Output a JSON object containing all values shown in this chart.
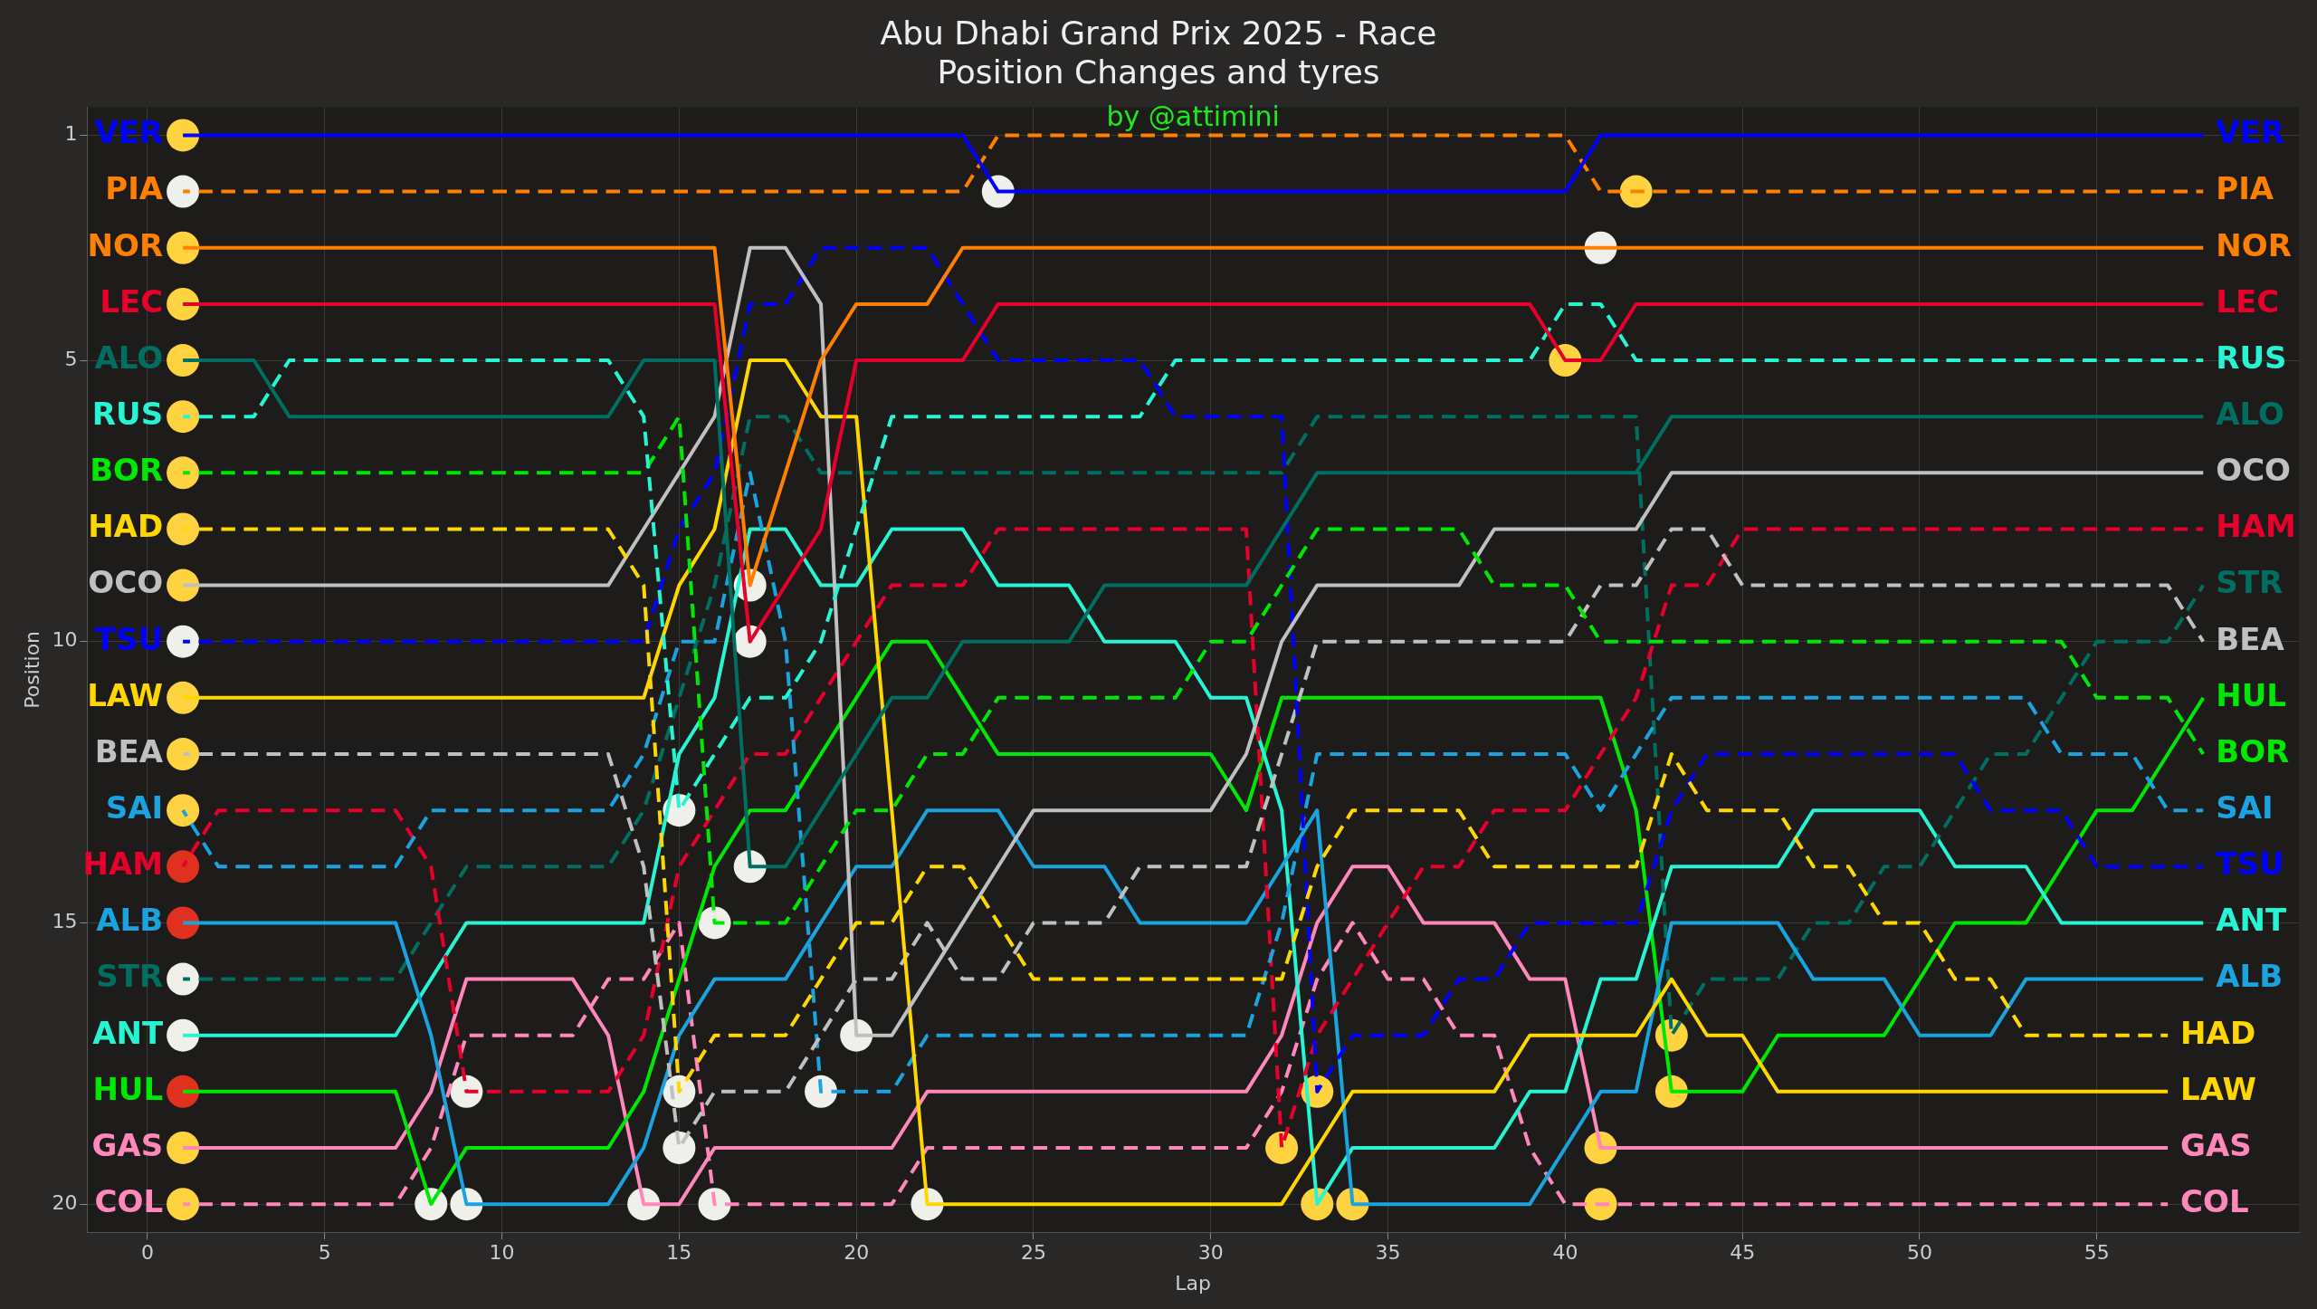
{
  "chart_data": {
    "type": "line",
    "title": "Abu Dhabi Grand Prix 2025 - Race",
    "subtitle": "Position Changes and tyres",
    "xlabel": "Lap",
    "ylabel": "Position",
    "annotations": [
      "by @attimini"
    ],
    "x": [
      1,
      2,
      3,
      4,
      5,
      6,
      7,
      8,
      9,
      10,
      11,
      12,
      13,
      14,
      15,
      16,
      17,
      18,
      19,
      20,
      21,
      22,
      23,
      24,
      25,
      26,
      27,
      28,
      29,
      30,
      31,
      32,
      33,
      34,
      35,
      36,
      37,
      38,
      39,
      40,
      41,
      42,
      43,
      44,
      45,
      46,
      47,
      48,
      49,
      50,
      51,
      52,
      53,
      54,
      55,
      56,
      57,
      58
    ],
    "xlim": [
      -1.7,
      60.7
    ],
    "xticks": [
      0,
      5,
      10,
      15,
      20,
      25,
      30,
      35,
      40,
      45,
      50,
      55
    ],
    "ylim": [
      20.5,
      0.5
    ],
    "yticks": [
      1,
      5,
      10,
      15,
      20
    ],
    "grid": true,
    "legend": "right",
    "marker": "none",
    "series": [
      {
        "name": "VER",
        "color": "#0000ff",
        "line_style": "solid",
        "values": [
          1,
          1,
          1,
          1,
          1,
          1,
          1,
          1,
          1,
          1,
          1,
          1,
          1,
          1,
          1,
          1,
          1,
          1,
          1,
          1,
          1,
          1,
          1,
          2,
          2,
          2,
          2,
          2,
          2,
          2,
          2,
          2,
          2,
          2,
          2,
          2,
          2,
          2,
          2,
          2,
          1,
          1,
          1,
          1,
          1,
          1,
          1,
          1,
          1,
          1,
          1,
          1,
          1,
          1,
          1,
          1,
          1,
          1
        ]
      },
      {
        "name": "PIA",
        "color": "#ff8000",
        "line_style": "dashed",
        "values": [
          2,
          2,
          2,
          2,
          2,
          2,
          2,
          2,
          2,
          2,
          2,
          2,
          2,
          2,
          2,
          2,
          2,
          2,
          2,
          2,
          2,
          2,
          2,
          1,
          1,
          1,
          1,
          1,
          1,
          1,
          1,
          1,
          1,
          1,
          1,
          1,
          1,
          1,
          1,
          1,
          2,
          2,
          2,
          2,
          2,
          2,
          2,
          2,
          2,
          2,
          2,
          2,
          2,
          2,
          2,
          2,
          2,
          2
        ]
      },
      {
        "name": "NOR",
        "color": "#ff8000",
        "line_style": "solid",
        "values": [
          3,
          3,
          3,
          3,
          3,
          3,
          3,
          3,
          3,
          3,
          3,
          3,
          3,
          3,
          3,
          3,
          9,
          7,
          5,
          4,
          4,
          4,
          3,
          3,
          3,
          3,
          3,
          3,
          3,
          3,
          3,
          3,
          3,
          3,
          3,
          3,
          3,
          3,
          3,
          3,
          3,
          3,
          3,
          3,
          3,
          3,
          3,
          3,
          3,
          3,
          3,
          3,
          3,
          3,
          3,
          3,
          3,
          3
        ]
      },
      {
        "name": "LEC",
        "color": "#e8002d",
        "line_style": "solid",
        "values": [
          4,
          4,
          4,
          4,
          4,
          4,
          4,
          4,
          4,
          4,
          4,
          4,
          4,
          4,
          4,
          4,
          10,
          9,
          8,
          5,
          5,
          5,
          5,
          4,
          4,
          4,
          4,
          4,
          4,
          4,
          4,
          4,
          4,
          4,
          4,
          4,
          4,
          4,
          4,
          5,
          5,
          4,
          4,
          4,
          4,
          4,
          4,
          4,
          4,
          4,
          4,
          4,
          4,
          4,
          4,
          4,
          4,
          4
        ]
      },
      {
        "name": "ALO",
        "color": "#006f62",
        "line_style": "solid",
        "values": [
          5,
          5,
          5,
          6,
          6,
          6,
          6,
          6,
          6,
          6,
          6,
          6,
          6,
          5,
          5,
          5,
          14,
          14,
          13,
          12,
          11,
          11,
          10,
          10,
          10,
          10,
          9,
          9,
          9,
          9,
          9,
          8,
          7,
          7,
          7,
          7,
          7,
          7,
          7,
          7,
          7,
          7,
          6,
          6,
          6,
          6,
          6,
          6,
          6,
          6,
          6,
          6,
          6,
          6,
          6,
          6,
          6,
          6
        ]
      },
      {
        "name": "RUS",
        "color": "#27f4d2",
        "line_style": "dashed",
        "values": [
          6,
          6,
          6,
          5,
          5,
          5,
          5,
          5,
          5,
          5,
          5,
          5,
          5,
          6,
          13,
          12,
          11,
          11,
          10,
          8,
          6,
          6,
          6,
          6,
          6,
          6,
          6,
          6,
          5,
          5,
          5,
          5,
          5,
          5,
          5,
          5,
          5,
          5,
          5,
          4,
          4,
          5,
          5,
          5,
          5,
          5,
          5,
          5,
          5,
          5,
          5,
          5,
          5,
          5,
          5,
          5,
          5,
          5
        ]
      },
      {
        "name": "BOR",
        "color": "#00e701",
        "line_style": "dashed",
        "values": [
          7,
          7,
          7,
          7,
          7,
          7,
          7,
          7,
          7,
          7,
          7,
          7,
          7,
          7,
          6,
          15,
          15,
          15,
          14,
          13,
          13,
          12,
          12,
          11,
          11,
          11,
          11,
          11,
          11,
          10,
          10,
          9,
          8,
          8,
          8,
          8,
          8,
          9,
          9,
          9,
          10,
          10,
          10,
          10,
          10,
          10,
          10,
          10,
          10,
          10,
          10,
          10,
          10,
          10,
          11,
          11,
          11,
          12
        ]
      },
      {
        "name": "HAD",
        "color": "#ffd700",
        "line_style": "dashed",
        "values": [
          8,
          8,
          8,
          8,
          8,
          8,
          8,
          8,
          8,
          8,
          8,
          8,
          8,
          9,
          18,
          17,
          17,
          17,
          16,
          15,
          15,
          14,
          14,
          15,
          16,
          16,
          16,
          16,
          16,
          16,
          16,
          16,
          14,
          13,
          13,
          13,
          13,
          14,
          14,
          14,
          14,
          14,
          12,
          13,
          13,
          13,
          14,
          14,
          15,
          15,
          16,
          16,
          17,
          17,
          17,
          17,
          17,
          null
        ]
      },
      {
        "name": "OCO",
        "color": "#c0c0c0",
        "line_style": "solid",
        "values": [
          9,
          9,
          9,
          9,
          9,
          9,
          9,
          9,
          9,
          9,
          9,
          9,
          9,
          8,
          7,
          6,
          3,
          3,
          4,
          17,
          17,
          16,
          15,
          14,
          13,
          13,
          13,
          13,
          13,
          13,
          12,
          10,
          9,
          9,
          9,
          9,
          9,
          8,
          8,
          8,
          8,
          8,
          7,
          7,
          7,
          7,
          7,
          7,
          7,
          7,
          7,
          7,
          7,
          7,
          7,
          7,
          7,
          7
        ]
      },
      {
        "name": "TSU",
        "color": "#0000ff",
        "line_style": "dashed",
        "values": [
          10,
          10,
          10,
          10,
          10,
          10,
          10,
          10,
          10,
          10,
          10,
          10,
          10,
          10,
          8,
          7,
          4,
          4,
          3,
          3,
          3,
          3,
          4,
          5,
          5,
          5,
          5,
          5,
          6,
          6,
          6,
          6,
          18,
          17,
          17,
          17,
          16,
          16,
          15,
          15,
          15,
          15,
          13,
          12,
          12,
          12,
          12,
          12,
          12,
          12,
          12,
          13,
          13,
          13,
          14,
          14,
          14,
          14
        ]
      },
      {
        "name": "LAW",
        "color": "#ffd700",
        "line_style": "solid",
        "values": [
          11,
          11,
          11,
          11,
          11,
          11,
          11,
          11,
          11,
          11,
          11,
          11,
          11,
          11,
          9,
          8,
          5,
          5,
          6,
          6,
          13,
          20,
          20,
          20,
          20,
          20,
          20,
          20,
          20,
          20,
          20,
          20,
          19,
          18,
          18,
          18,
          18,
          18,
          17,
          17,
          17,
          17,
          16,
          17,
          17,
          18,
          18,
          18,
          18,
          18,
          18,
          18,
          18,
          18,
          18,
          18,
          18,
          null
        ]
      },
      {
        "name": "BEA",
        "color": "#c0c0c0",
        "line_style": "dashed",
        "values": [
          12,
          12,
          12,
          12,
          12,
          12,
          12,
          12,
          12,
          12,
          12,
          12,
          12,
          14,
          19,
          18,
          18,
          18,
          17,
          16,
          16,
          15,
          16,
          16,
          15,
          15,
          15,
          14,
          14,
          14,
          14,
          12,
          10,
          10,
          10,
          10,
          10,
          10,
          10,
          10,
          9,
          9,
          8,
          8,
          9,
          9,
          9,
          9,
          9,
          9,
          9,
          9,
          9,
          9,
          9,
          9,
          9,
          10
        ]
      },
      {
        "name": "SAI",
        "color": "#1ba3e0",
        "line_style": "dashed",
        "values": [
          13,
          14,
          14,
          14,
          14,
          14,
          14,
          13,
          13,
          13,
          13,
          13,
          13,
          12,
          10,
          10,
          7,
          10,
          18,
          18,
          18,
          17,
          17,
          17,
          17,
          17,
          17,
          17,
          17,
          17,
          17,
          15,
          12,
          12,
          12,
          12,
          12,
          12,
          12,
          12,
          13,
          12,
          11,
          11,
          11,
          11,
          11,
          11,
          11,
          11,
          11,
          11,
          11,
          12,
          12,
          12,
          13,
          13
        ]
      },
      {
        "name": "HAM",
        "color": "#e8002d",
        "line_style": "dashed",
        "values": [
          14,
          13,
          13,
          13,
          13,
          13,
          13,
          14,
          18,
          18,
          18,
          18,
          18,
          17,
          14,
          13,
          12,
          12,
          11,
          10,
          9,
          9,
          9,
          8,
          8,
          8,
          8,
          8,
          8,
          8,
          8,
          19,
          17,
          16,
          15,
          14,
          14,
          13,
          13,
          13,
          12,
          11,
          9,
          9,
          8,
          8,
          8,
          8,
          8,
          8,
          8,
          8,
          8,
          8,
          8,
          8,
          8,
          8
        ]
      },
      {
        "name": "ALB",
        "color": "#1ba3e0",
        "line_style": "solid",
        "values": [
          15,
          15,
          15,
          15,
          15,
          15,
          15,
          17,
          20,
          20,
          20,
          20,
          20,
          19,
          17,
          16,
          16,
          16,
          15,
          14,
          14,
          13,
          13,
          13,
          14,
          14,
          14,
          15,
          15,
          15,
          15,
          14,
          13,
          20,
          20,
          20,
          20,
          20,
          20,
          19,
          18,
          18,
          15,
          15,
          15,
          15,
          16,
          16,
          16,
          17,
          17,
          17,
          16,
          16,
          16,
          16,
          16,
          16
        ]
      },
      {
        "name": "STR",
        "color": "#006f62",
        "line_style": "dashed",
        "values": [
          16,
          16,
          16,
          16,
          16,
          16,
          16,
          15,
          14,
          14,
          14,
          14,
          14,
          13,
          11,
          9,
          6,
          6,
          7,
          7,
          7,
          7,
          7,
          7,
          7,
          7,
          7,
          7,
          7,
          7,
          7,
          7,
          6,
          6,
          6,
          6,
          6,
          6,
          6,
          6,
          6,
          6,
          17,
          16,
          16,
          16,
          15,
          15,
          14,
          14,
          13,
          12,
          12,
          11,
          10,
          10,
          10,
          9
        ]
      },
      {
        "name": "ANT",
        "color": "#27f4d2",
        "line_style": "solid",
        "values": [
          17,
          17,
          17,
          17,
          17,
          17,
          17,
          16,
          15,
          15,
          15,
          15,
          15,
          15,
          12,
          11,
          8,
          8,
          9,
          9,
          8,
          8,
          8,
          9,
          9,
          9,
          10,
          10,
          10,
          11,
          11,
          13,
          20,
          19,
          19,
          19,
          19,
          19,
          18,
          18,
          16,
          16,
          14,
          14,
          14,
          14,
          13,
          13,
          13,
          13,
          14,
          14,
          14,
          15,
          15,
          15,
          15,
          15
        ]
      },
      {
        "name": "HUL",
        "color": "#00e701",
        "line_style": "solid",
        "values": [
          18,
          18,
          18,
          18,
          18,
          18,
          18,
          20,
          19,
          19,
          19,
          19,
          19,
          18,
          16,
          14,
          13,
          13,
          12,
          11,
          10,
          10,
          11,
          12,
          12,
          12,
          12,
          12,
          12,
          12,
          13,
          11,
          11,
          11,
          11,
          11,
          11,
          11,
          11,
          11,
          11,
          13,
          18,
          18,
          18,
          17,
          17,
          17,
          17,
          16,
          15,
          15,
          15,
          14,
          13,
          13,
          12,
          11
        ]
      },
      {
        "name": "GAS",
        "color": "#ff87bc",
        "line_style": "solid",
        "values": [
          19,
          19,
          19,
          19,
          19,
          19,
          19,
          18,
          16,
          16,
          16,
          16,
          17,
          20,
          20,
          19,
          19,
          19,
          19,
          19,
          19,
          18,
          18,
          18,
          18,
          18,
          18,
          18,
          18,
          18,
          18,
          17,
          15,
          14,
          14,
          15,
          15,
          15,
          16,
          16,
          19,
          19,
          19,
          19,
          19,
          19,
          19,
          19,
          19,
          19,
          19,
          19,
          19,
          19,
          19,
          19,
          19,
          null
        ]
      },
      {
        "name": "COL",
        "color": "#ff87bc",
        "line_style": "dashed",
        "values": [
          20,
          20,
          20,
          20,
          20,
          20,
          20,
          19,
          17,
          17,
          17,
          17,
          16,
          16,
          15,
          20,
          20,
          20,
          20,
          20,
          20,
          19,
          19,
          19,
          19,
          19,
          19,
          19,
          19,
          19,
          19,
          18,
          16,
          15,
          16,
          16,
          17,
          17,
          19,
          20,
          20,
          20,
          20,
          20,
          20,
          20,
          20,
          20,
          20,
          20,
          20,
          20,
          20,
          20,
          20,
          20,
          20,
          null
        ]
      },
      {
        "type": "scatter",
        "marker": "circle",
        "color": "#ffd23f",
        "x": [
          1,
          1,
          1,
          1,
          1,
          1,
          1,
          1,
          1,
          1,
          1,
          1,
          1,
          32,
          33,
          33,
          34,
          40,
          41,
          41,
          42,
          43,
          43
        ],
        "values": [
          1,
          3,
          4,
          5,
          6,
          7,
          8,
          9,
          11,
          12,
          13,
          19,
          20,
          19,
          18,
          20,
          20,
          5,
          19,
          20,
          2,
          17,
          18
        ]
      },
      {
        "type": "scatter",
        "marker": "circle",
        "color": "#f0f0eb",
        "x": [
          1,
          1,
          1,
          1,
          8,
          9,
          9,
          14,
          15,
          15,
          15,
          16,
          16,
          17,
          17,
          17,
          19,
          20,
          22,
          24,
          41
        ],
        "values": [
          2,
          10,
          16,
          17,
          20,
          18,
          20,
          20,
          13,
          18,
          19,
          15,
          20,
          9,
          10,
          14,
          18,
          17,
          20,
          2,
          3
        ]
      },
      {
        "type": "scatter",
        "marker": "circle",
        "color": "#e0301e",
        "x": [
          1,
          1,
          1
        ],
        "values": [
          14,
          15,
          18
        ]
      }
    ]
  }
}
